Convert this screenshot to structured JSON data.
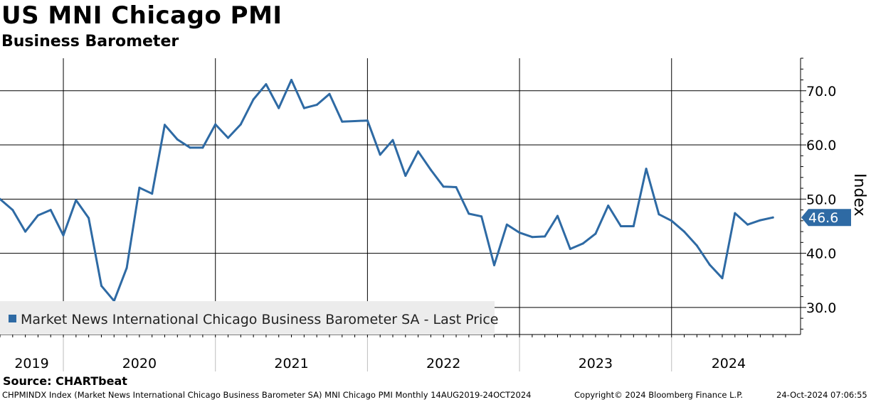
{
  "header": {
    "title": "US MNI Chicago PMI",
    "subtitle": "Business Barometer"
  },
  "chart_data": {
    "type": "line",
    "ylabel": "Index",
    "ylim": [
      25,
      76
    ],
    "ytick_values": [
      30,
      40,
      50,
      60,
      70
    ],
    "ytick_labels": [
      "30.0",
      "40.0",
      "50.0",
      "60.0",
      "70.0"
    ],
    "x_start": "2019-08",
    "x_end": "2024-10",
    "year_labels": [
      "2019",
      "2020",
      "2021",
      "2022",
      "2023",
      "2024"
    ],
    "grid": true,
    "legend_position": "bottom-left",
    "last_price_label": "46.6",
    "series": [
      {
        "name": "Market News International Chicago Business Barometer SA - Last Price",
        "color": "#2e6aa4",
        "points": [
          [
            "2019-08",
            50.0
          ],
          [
            "2019-09",
            48.0
          ],
          [
            "2019-10",
            44.0
          ],
          [
            "2019-11",
            47.0
          ],
          [
            "2019-12",
            48.0
          ],
          [
            "2020-01",
            43.3
          ],
          [
            "2020-02",
            49.8
          ],
          [
            "2020-03",
            46.5
          ],
          [
            "2020-04",
            34.0
          ],
          [
            "2020-05",
            31.2
          ],
          [
            "2020-06",
            37.3
          ],
          [
            "2020-07",
            52.1
          ],
          [
            "2020-08",
            51.0
          ],
          [
            "2020-09",
            63.7
          ],
          [
            "2020-10",
            61.0
          ],
          [
            "2020-11",
            59.5
          ],
          [
            "2020-12",
            59.5
          ],
          [
            "2021-01",
            63.8
          ],
          [
            "2021-02",
            61.3
          ],
          [
            "2021-03",
            63.8
          ],
          [
            "2021-04",
            68.4
          ],
          [
            "2021-05",
            71.2
          ],
          [
            "2021-06",
            66.8
          ],
          [
            "2021-07",
            72.0
          ],
          [
            "2021-08",
            66.8
          ],
          [
            "2021-09",
            67.4
          ],
          [
            "2021-10",
            69.4
          ],
          [
            "2021-11",
            64.3
          ],
          [
            "2021-12",
            64.4
          ],
          [
            "2022-01",
            64.5
          ],
          [
            "2022-02",
            58.2
          ],
          [
            "2022-03",
            60.9
          ],
          [
            "2022-04",
            54.3
          ],
          [
            "2022-05",
            58.8
          ],
          [
            "2022-06",
            55.4
          ],
          [
            "2022-07",
            52.3
          ],
          [
            "2022-08",
            52.2
          ],
          [
            "2022-09",
            47.3
          ],
          [
            "2022-10",
            46.8
          ],
          [
            "2022-11",
            37.8
          ],
          [
            "2022-12",
            45.3
          ],
          [
            "2023-01",
            43.8
          ],
          [
            "2023-02",
            43.0
          ],
          [
            "2023-03",
            43.1
          ],
          [
            "2023-04",
            46.9
          ],
          [
            "2023-05",
            40.8
          ],
          [
            "2023-06",
            41.8
          ],
          [
            "2023-07",
            43.6
          ],
          [
            "2023-08",
            48.8
          ],
          [
            "2023-09",
            45.0
          ],
          [
            "2023-10",
            45.0
          ],
          [
            "2023-11",
            55.6
          ],
          [
            "2023-12",
            47.2
          ],
          [
            "2024-01",
            46.0
          ],
          [
            "2024-02",
            44.0
          ],
          [
            "2024-03",
            41.4
          ],
          [
            "2024-04",
            37.9
          ],
          [
            "2024-05",
            35.4
          ],
          [
            "2024-06",
            47.4
          ],
          [
            "2024-07",
            45.3
          ],
          [
            "2024-08",
            46.1
          ],
          [
            "2024-09",
            46.6
          ]
        ]
      }
    ]
  },
  "source": "Source: CHARTbeat",
  "footer": {
    "left": "CHPMINDX Index (Market News International Chicago Business Barometer SA) MNI Chicago PMI  Monthly 14AUG2019-24OCT2024",
    "center": "Copyright© 2024 Bloomberg Finance L.P.",
    "right": "24-Oct-2024 07:06:55"
  }
}
